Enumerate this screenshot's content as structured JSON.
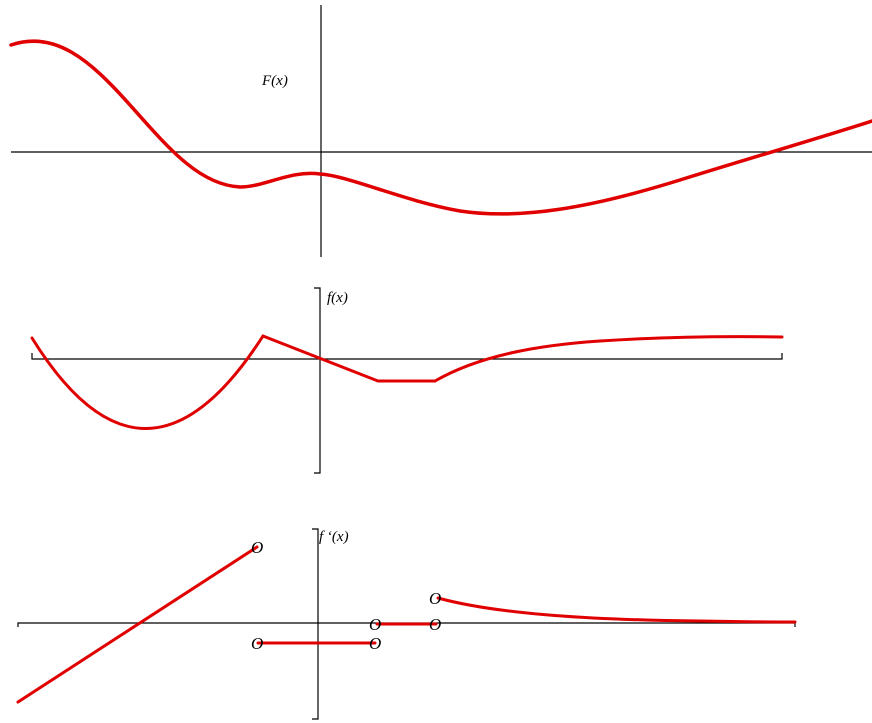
{
  "colors": {
    "curve": "#e00000",
    "axis": "#000000",
    "background": "#ffffff"
  },
  "panels": {
    "antiderivative": {
      "label": "F(x)"
    },
    "function": {
      "label": "f(x)"
    },
    "derivative": {
      "label": "f ‘(x)",
      "open_endpoint_symbol": "O"
    }
  }
}
